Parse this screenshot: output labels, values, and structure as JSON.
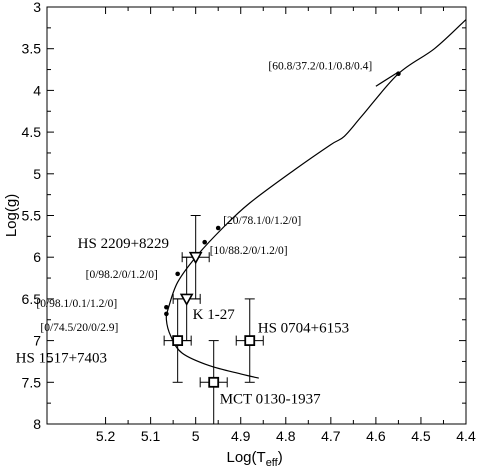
{
  "chart_data": {
    "type": "scatter",
    "xlabel": "Log(T",
    "xlabel_sub": "eff",
    "xlabel_close": ")",
    "ylabel": "Log(g)",
    "xlim": [
      5.33,
      4.4
    ],
    "ylim": [
      8,
      3
    ],
    "x_ticks": [
      5.2,
      5.1,
      5.0,
      4.9,
      4.8,
      4.7,
      4.6,
      4.5,
      4.4
    ],
    "x_tick_labels": [
      "5.2",
      "5.1",
      "5",
      "4.9",
      "4.8",
      "4.7",
      "4.6",
      "4.5",
      "4.4"
    ],
    "y_ticks": [
      3,
      3.5,
      4,
      4.5,
      5,
      5.5,
      6,
      6.5,
      7,
      7.5,
      8
    ],
    "y_tick_labels": [
      "3",
      "3.5",
      "4",
      "4.5",
      "5",
      "5.5",
      "6",
      "6.5",
      "7",
      "7.5",
      "8"
    ],
    "track": [
      [
        4.4,
        3.15
      ],
      [
        4.47,
        3.5
      ],
      [
        4.55,
        3.8
      ],
      [
        4.63,
        4.3
      ],
      [
        4.67,
        4.55
      ],
      [
        4.7,
        4.65
      ],
      [
        4.78,
        4.95
      ],
      [
        4.88,
        5.35
      ],
      [
        4.94,
        5.65
      ],
      [
        5.0,
        6.0
      ],
      [
        5.04,
        6.3
      ],
      [
        5.06,
        6.6
      ],
      [
        5.065,
        6.75
      ],
      [
        5.055,
        6.95
      ],
      [
        5.03,
        7.15
      ],
      [
        4.97,
        7.3
      ],
      [
        4.9,
        7.4
      ],
      [
        4.86,
        7.45
      ]
    ],
    "track_spur": [
      [
        4.6,
        3.95
      ],
      [
        4.55,
        3.78
      ]
    ],
    "track_points": [
      {
        "x": 4.55,
        "y": 3.8,
        "label": "[60.8/37.2/0.1/0.8/0.4]"
      },
      {
        "x": 4.95,
        "y": 5.65,
        "label": "[20/78.1/0/1.2/0]"
      },
      {
        "x": 4.98,
        "y": 5.82,
        "label": "[10/88.2/0/1.2/0]"
      },
      {
        "x": 5.04,
        "y": 6.2,
        "label": "[0/98.2/0/1.2/0]"
      },
      {
        "x": 5.065,
        "y": 6.6,
        "label": "[0/98.1/0.1/1.2/0]"
      },
      {
        "x": 5.065,
        "y": 6.68,
        "label": "[0/74.5/20/0/2.9]"
      }
    ],
    "stars": [
      {
        "name": "HS 2209+8229",
        "marker": "triangle",
        "x": 5.0,
        "y": 6.0,
        "xerr": 0.03,
        "yerr": 0.5
      },
      {
        "name": "K 1-27",
        "marker": "triangle",
        "x": 5.02,
        "y": 6.5,
        "xerr": 0.03,
        "yerr": 0.5
      },
      {
        "name": "HS 0704+6153",
        "marker": "square",
        "x": 4.88,
        "y": 7.0,
        "xerr": 0.03,
        "yerr": 0.5
      },
      {
        "name": "HS 1517+7403",
        "marker": "square",
        "x": 5.04,
        "y": 7.0,
        "xerr": 0.03,
        "yerr": 0.5
      },
      {
        "name": "MCT 0130-1937",
        "marker": "square",
        "x": 4.96,
        "y": 7.5,
        "xerr": 0.03,
        "yerr": 0.5
      }
    ],
    "grid": false
  }
}
